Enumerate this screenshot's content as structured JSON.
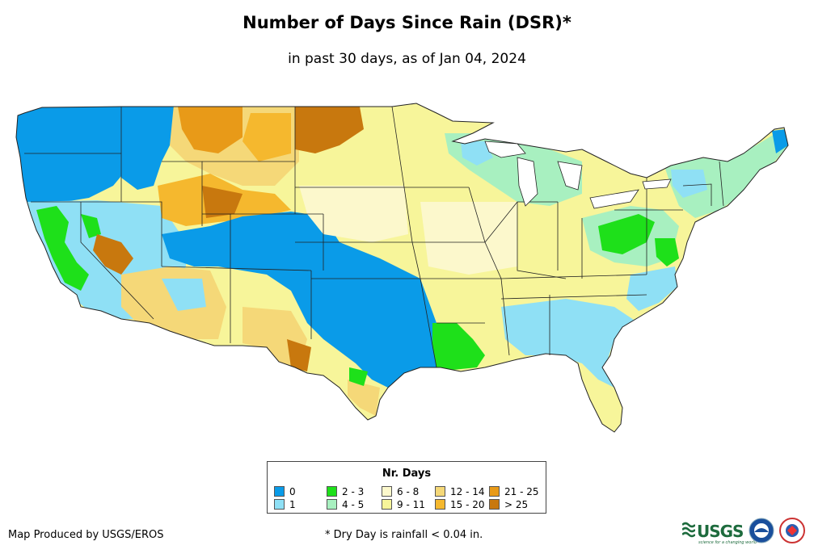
{
  "title": "Number of Days Since Rain (DSR)*",
  "subtitle": "in past 30 days, as of Jan 04, 2024",
  "legend": {
    "title": "Nr. Days",
    "items": [
      {
        "label": "0",
        "color": "#0a9be8"
      },
      {
        "label": "1",
        "color": "#8fe0f5"
      },
      {
        "label": "2 - 3",
        "color": "#1ee01a"
      },
      {
        "label": "4 - 5",
        "color": "#a8f0c0"
      },
      {
        "label": "6 - 8",
        "color": "#fcf8cc"
      },
      {
        "label": "9 - 11",
        "color": "#f7f59a"
      },
      {
        "label": "12 - 14",
        "color": "#f5d878"
      },
      {
        "label": "15 - 20",
        "color": "#f5b82e"
      },
      {
        "label": "21 - 25",
        "color": "#e89a18"
      },
      {
        "label": "> 25",
        "color": "#c8780e"
      }
    ]
  },
  "footer": {
    "producer": "Map Produced by USGS/EROS",
    "note": "* Dry Day is rainfall < 0.04 in."
  },
  "logos": {
    "usgs": "USGS",
    "usgs_tagline": "science for a changing world"
  }
}
